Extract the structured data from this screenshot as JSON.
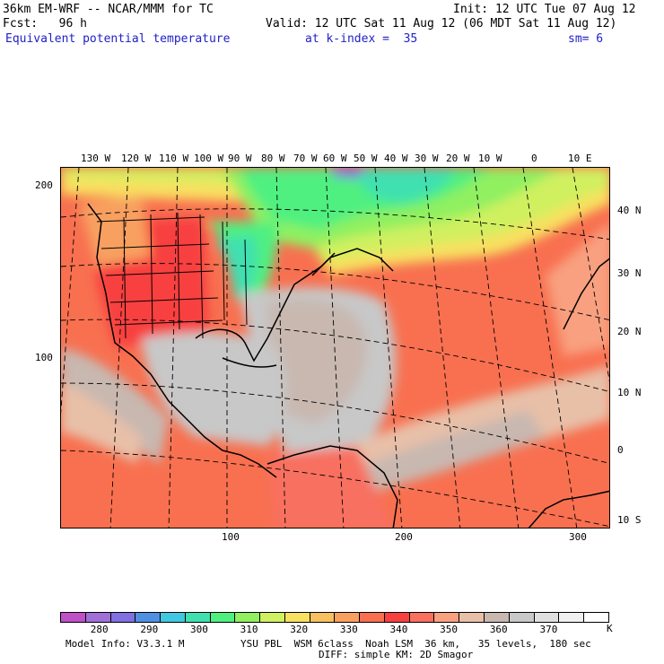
{
  "header": {
    "model": "36km EM-WRF -- NCAR/MMM for TC",
    "init": "Init: 12 UTC Tue 07 Aug 12",
    "fcst": "Fcst:   96 h",
    "valid": "Valid: 12 UTC Sat 11 Aug 12 (06 MDT Sat 11 Aug 12)",
    "field": "Equivalent potential temperature",
    "kindex": "at k-index =  35",
    "sm": "sm= 6"
  },
  "map": {
    "lon_labels": [
      "130 W",
      "120 W",
      "110 W",
      "100 W",
      "90 W",
      "80 W",
      "70 W",
      "60 W",
      "50 W",
      "40 W",
      "30 W",
      "20 W",
      "10 W",
      "0",
      "10 E"
    ],
    "lat_labels": [
      "40 N",
      "30 N",
      "20 N",
      "10 N",
      "0",
      "10 S"
    ],
    "y_axis_labels": [
      "200",
      "100"
    ],
    "x_axis_labels": [
      "100",
      "200",
      "300"
    ]
  },
  "colorbar": {
    "colors": [
      "#c050c8",
      "#a070d8",
      "#8070e0",
      "#5090e0",
      "#40c8e0",
      "#40e0b0",
      "#50f080",
      "#90f060",
      "#d0f060",
      "#f8e060",
      "#f8c060",
      "#f8a060",
      "#f87050",
      "#f84040",
      "#f87060",
      "#f8a080",
      "#e8c0a8",
      "#c8b8b0",
      "#c8c8c8",
      "#e0e0e0",
      "#f0f0f0",
      "#ffffff"
    ],
    "labels": [
      "280",
      "290",
      "300",
      "310",
      "320",
      "330",
      "340",
      "350",
      "360",
      "370"
    ],
    "unit": "K"
  },
  "footer": {
    "model_info": "Model Info: V3.3.1 M",
    "physics_1": "YSU PBL  WSM 6class  Noah LSM  36 km,   35 levels,  180 sec",
    "physics_2": "DIFF: simple KM: 2D Smagor"
  }
}
